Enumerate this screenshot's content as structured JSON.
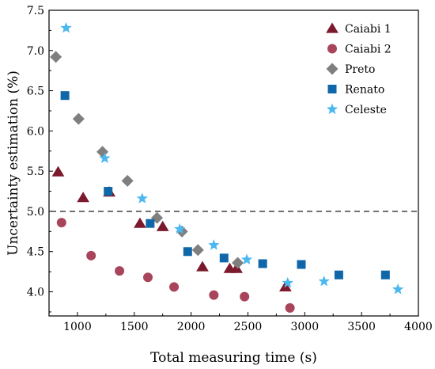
{
  "chart_data": {
    "type": "scatter",
    "xlabel": "Total measuring time (s)",
    "ylabel": "Uncertainty estimation (%)",
    "xlim": [
      750,
      4000
    ],
    "ylim": [
      3.7,
      7.5
    ],
    "xticks": [
      1000,
      1500,
      2000,
      2500,
      3000,
      3500,
      4000
    ],
    "xtick_labels": [
      "1000",
      "1500",
      "2000",
      "2500",
      "3000",
      "3500",
      "4000"
    ],
    "yticks": [
      4.0,
      4.5,
      5.0,
      5.5,
      6.0,
      6.5,
      7.0,
      7.5
    ],
    "ytick_labels": [
      "4.0",
      "4.5",
      "5.0",
      "5.5",
      "6.0",
      "6.5",
      "7.0",
      "7.5"
    ],
    "reference_line": {
      "y": 5.0,
      "style": "dashed"
    },
    "legend_position": "top-right",
    "grid": false,
    "series": [
      {
        "name": "Caiabi 1",
        "marker": "triangle",
        "color": "#7B1A2C",
        "points": [
          [
            830,
            5.49
          ],
          [
            1050,
            5.17
          ],
          [
            1280,
            5.24
          ],
          [
            1550,
            4.85
          ],
          [
            1750,
            4.81
          ],
          [
            2100,
            4.31
          ],
          [
            2340,
            4.29
          ],
          [
            2400,
            4.29
          ],
          [
            2830,
            4.06
          ]
        ]
      },
      {
        "name": "Caiabi 2",
        "marker": "circle",
        "color": "#A8455A",
        "points": [
          [
            860,
            4.86
          ],
          [
            1120,
            4.45
          ],
          [
            1370,
            4.26
          ],
          [
            1620,
            4.18
          ],
          [
            1850,
            4.06
          ],
          [
            2200,
            3.96
          ],
          [
            2470,
            3.94
          ],
          [
            2870,
            3.8
          ]
        ]
      },
      {
        "name": "Preto",
        "marker": "diamond",
        "color": "#7F7F7F",
        "points": [
          [
            810,
            6.92
          ],
          [
            1010,
            6.15
          ],
          [
            1220,
            5.74
          ],
          [
            1440,
            5.38
          ],
          [
            1700,
            4.92
          ],
          [
            1920,
            4.75
          ],
          [
            2060,
            4.52
          ],
          [
            2410,
            4.36
          ]
        ]
      },
      {
        "name": "Renato",
        "marker": "square",
        "color": "#0F66A8",
        "points": [
          [
            890,
            6.44
          ],
          [
            1270,
            5.25
          ],
          [
            1640,
            4.85
          ],
          [
            1970,
            4.5
          ],
          [
            2290,
            4.42
          ],
          [
            2630,
            4.35
          ],
          [
            2970,
            4.34
          ],
          [
            3300,
            4.21
          ],
          [
            3710,
            4.21
          ]
        ]
      },
      {
        "name": "Celeste",
        "marker": "star",
        "color": "#4BB8F0",
        "points": [
          [
            900,
            7.28
          ],
          [
            1240,
            5.66
          ],
          [
            1570,
            5.16
          ],
          [
            1900,
            4.78
          ],
          [
            2200,
            4.58
          ],
          [
            2490,
            4.4
          ],
          [
            2850,
            4.11
          ],
          [
            3170,
            4.13
          ],
          [
            3820,
            4.03
          ]
        ]
      }
    ]
  }
}
